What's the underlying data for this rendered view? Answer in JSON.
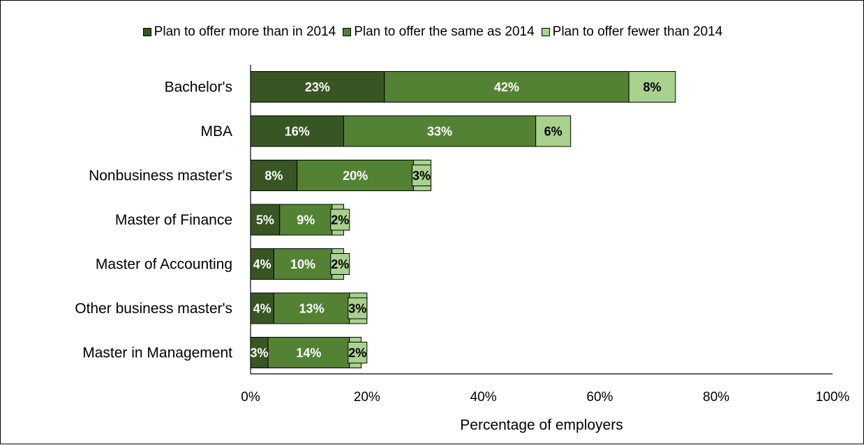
{
  "chart_data": {
    "type": "bar",
    "orientation": "horizontal",
    "stacked": true,
    "categories": [
      "Bachelor's",
      "MBA",
      "Nonbusiness master's",
      "Master of Finance",
      "Master of Accounting",
      "Other business master's",
      "Master in Management"
    ],
    "series": [
      {
        "name": "Plan to offer more than in 2014",
        "values": [
          23,
          16,
          8,
          5,
          4,
          4,
          3
        ],
        "labels": [
          "23%",
          "16%",
          "8%",
          "5%",
          "4%",
          "4%",
          "3%"
        ],
        "color": "#375623",
        "label_color": "#ffffff"
      },
      {
        "name": "Plan to offer the same as 2014",
        "values": [
          42,
          33,
          20,
          9,
          10,
          13,
          14
        ],
        "labels": [
          "42%",
          "33%",
          "20%",
          "9%",
          "10%",
          "13%",
          "14%"
        ],
        "color": "#548235",
        "label_color": "#ffffff"
      },
      {
        "name": "Plan to offer fewer than 2014",
        "values": [
          8,
          6,
          3,
          2,
          2,
          3,
          2
        ],
        "labels": [
          "8%",
          "6%",
          "3%",
          "2%",
          "2%",
          "3%",
          "2%"
        ],
        "color": "#a9d18e",
        "label_color": "#000000"
      }
    ],
    "xlim": [
      0,
      100
    ],
    "xticks": [
      0,
      20,
      40,
      60,
      80,
      100
    ],
    "xtick_labels": [
      "0%",
      "20%",
      "40%",
      "60%",
      "80%",
      "100%"
    ],
    "xlabel": "Percentage of employers",
    "ylabel": "",
    "grid": false,
    "legend_position": "top"
  }
}
